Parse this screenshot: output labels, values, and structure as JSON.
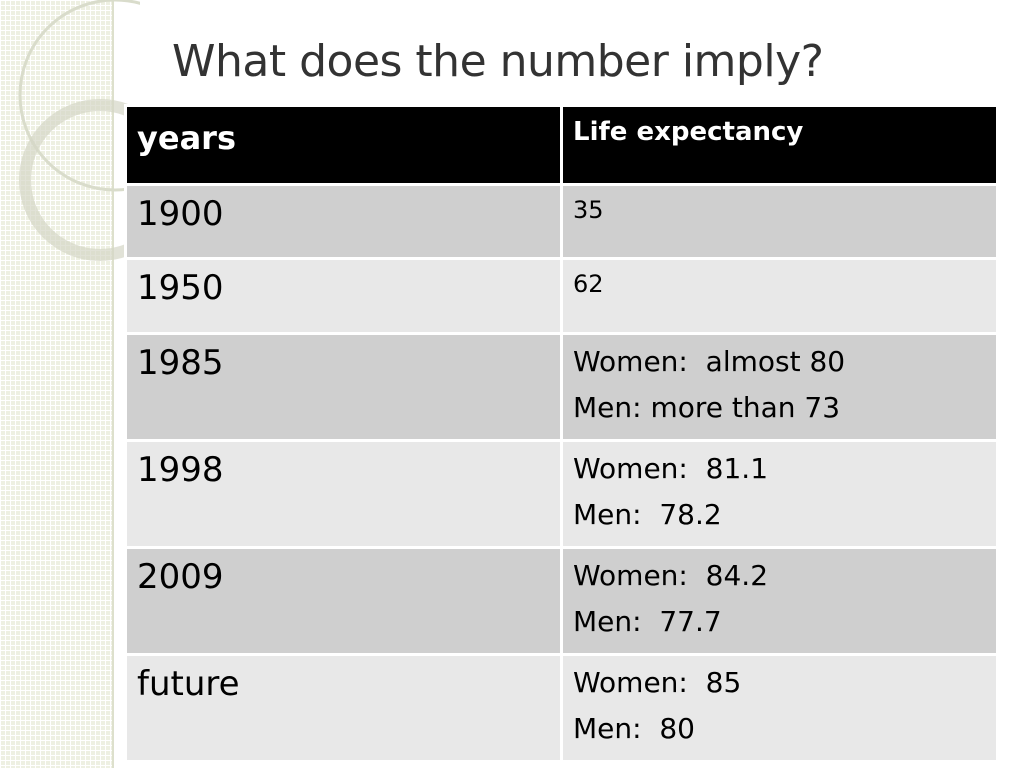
{
  "header": {
    "title": "What does the number imply?"
  },
  "table": {
    "columns": [
      "years",
      "Life expectancy"
    ],
    "rows": [
      {
        "year": "1900",
        "lines": [
          "35"
        ]
      },
      {
        "year": "1950",
        "lines": [
          "62"
        ]
      },
      {
        "year": "1985",
        "lines": [
          "Women:  almost 80",
          "Men: more than 73"
        ]
      },
      {
        "year": "1998",
        "lines": [
          "Women:  81.1",
          "Men:  78.2"
        ]
      },
      {
        "year": "2009",
        "lines": [
          "Women:  84.2",
          "Men:  77.7"
        ]
      },
      {
        "year": "future",
        "lines": [
          "Women:  85",
          "Men:  80"
        ]
      }
    ]
  }
}
